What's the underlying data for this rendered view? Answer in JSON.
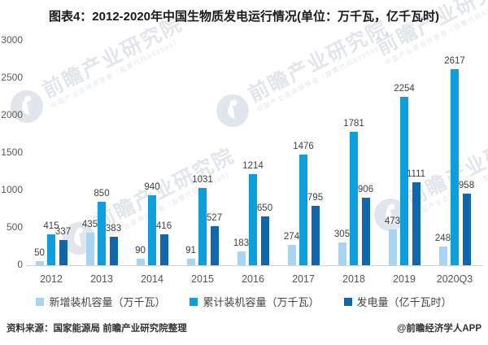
{
  "title": "图表4：2012-2020年中国生物质发电运行情况(单位：万千瓦，亿千瓦时)",
  "chart_data": {
    "type": "bar",
    "categories": [
      "2012",
      "2013",
      "2014",
      "2015",
      "2016",
      "2017",
      "2018",
      "2019",
      "2020Q3"
    ],
    "series": [
      {
        "name": "新增装机容量（万千瓦）",
        "color": "#a7d4f1",
        "values": [
          50,
          435,
          90,
          91,
          183,
          274,
          305,
          473,
          248
        ]
      },
      {
        "name": "累计装机容量（万千瓦）",
        "color": "#0a9fdf",
        "values": [
          415,
          850,
          940,
          1031,
          1214,
          1476,
          1781,
          2254,
          2617
        ]
      },
      {
        "name": "发电量（亿千瓦时）",
        "color": "#0f67b0",
        "values": [
          337,
          383,
          416,
          527,
          650,
          795,
          906,
          1111,
          958
        ]
      }
    ],
    "ylim": [
      0,
      3000
    ],
    "yticks": [
      0,
      500,
      1000,
      1500,
      2000,
      2500,
      3000
    ],
    "grid": false,
    "legend_position": "bottom"
  },
  "footer": {
    "source": "资料来源：国家能源局 前瞻产业研究院整理",
    "credit": "@前瞻经济学人APP"
  },
  "watermark": {
    "text": "前瞻产业研究院",
    "subtext": "中国产业咨询领导者（股票代码839599）"
  }
}
